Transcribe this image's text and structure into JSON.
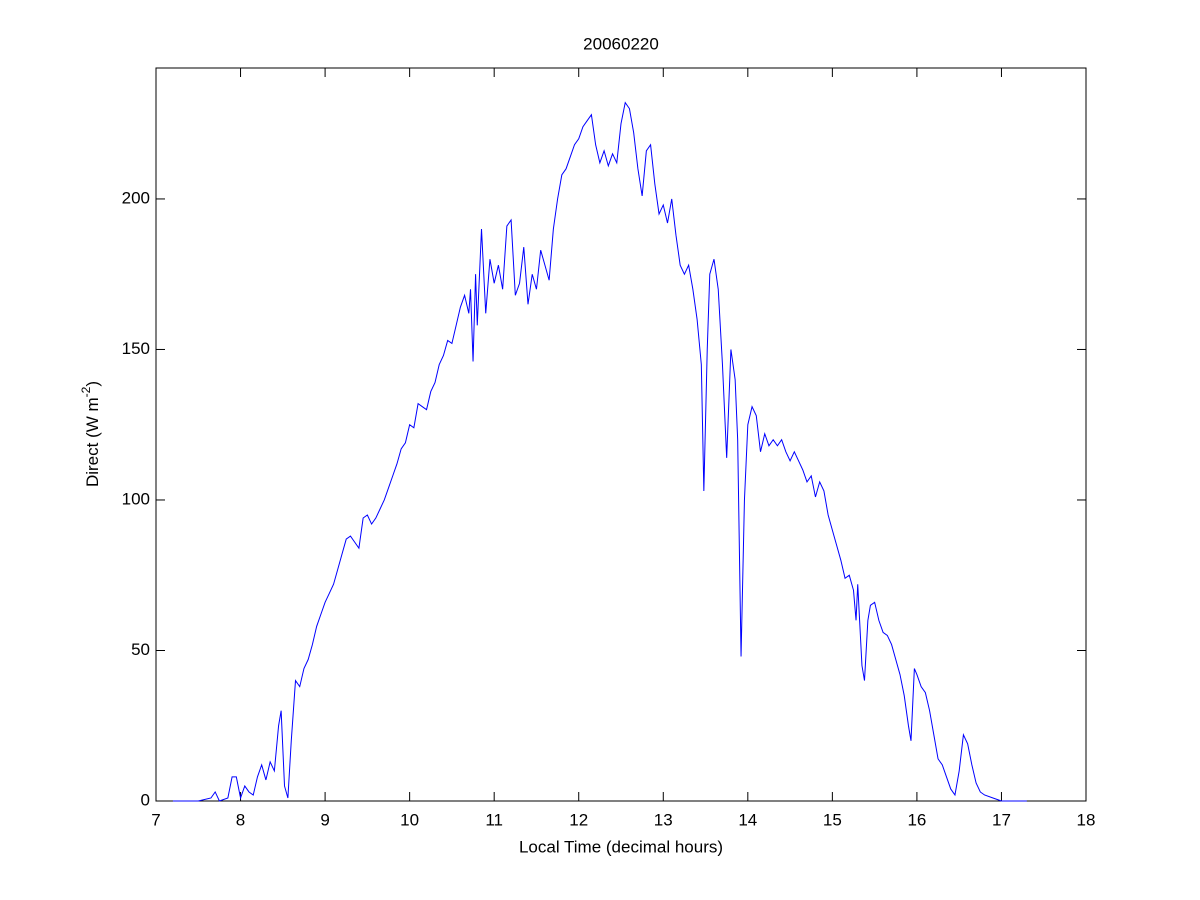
{
  "chart_data": {
    "type": "line",
    "title": "20060220",
    "xlabel": "Local Time (decimal hours)",
    "ylabel": {
      "text": "Direct (W m",
      "superscript": "-2",
      "suffix": ")"
    },
    "xlim": [
      7,
      18
    ],
    "xticks": [
      7,
      8,
      9,
      10,
      11,
      12,
      13,
      14,
      15,
      16,
      17,
      18
    ],
    "ylim": [
      0,
      243.5
    ],
    "yticks": [
      0,
      50,
      100,
      150,
      200
    ],
    "grid": false,
    "series": [
      {
        "color": "#0000ff",
        "x": [
          7.2,
          7.5,
          7.65,
          7.7,
          7.75,
          7.85,
          7.9,
          7.95,
          8.0,
          8.05,
          8.1,
          8.15,
          8.2,
          8.25,
          8.3,
          8.35,
          8.4,
          8.45,
          8.48,
          8.52,
          8.56,
          8.6,
          8.65,
          8.7,
          8.75,
          8.8,
          8.85,
          8.9,
          8.95,
          9.0,
          9.05,
          9.1,
          9.15,
          9.2,
          9.25,
          9.3,
          9.35,
          9.4,
          9.45,
          9.5,
          9.55,
          9.6,
          9.65,
          9.7,
          9.75,
          9.8,
          9.85,
          9.9,
          9.95,
          10.0,
          10.05,
          10.1,
          10.15,
          10.2,
          10.25,
          10.3,
          10.35,
          10.4,
          10.45,
          10.5,
          10.55,
          10.6,
          10.65,
          10.7,
          10.72,
          10.75,
          10.78,
          10.8,
          10.85,
          10.9,
          10.95,
          11.0,
          11.05,
          11.1,
          11.15,
          11.2,
          11.25,
          11.3,
          11.35,
          11.4,
          11.45,
          11.5,
          11.55,
          11.6,
          11.65,
          11.7,
          11.75,
          11.8,
          11.85,
          11.9,
          11.95,
          12.0,
          12.05,
          12.1,
          12.15,
          12.2,
          12.25,
          12.3,
          12.35,
          12.4,
          12.45,
          12.5,
          12.55,
          12.6,
          12.65,
          12.7,
          12.75,
          12.8,
          12.85,
          12.9,
          12.95,
          13.0,
          13.05,
          13.1,
          13.15,
          13.2,
          13.25,
          13.3,
          13.35,
          13.4,
          13.45,
          13.48,
          13.52,
          13.55,
          13.6,
          13.65,
          13.7,
          13.75,
          13.8,
          13.85,
          13.88,
          13.92,
          13.96,
          14.0,
          14.05,
          14.1,
          14.15,
          14.2,
          14.25,
          14.3,
          14.35,
          14.4,
          14.45,
          14.5,
          14.55,
          14.6,
          14.65,
          14.7,
          14.75,
          14.8,
          14.85,
          14.9,
          14.95,
          15.0,
          15.05,
          15.1,
          15.15,
          15.2,
          15.25,
          15.28,
          15.3,
          15.35,
          15.38,
          15.42,
          15.45,
          15.5,
          15.55,
          15.6,
          15.65,
          15.7,
          15.75,
          15.8,
          15.85,
          15.9,
          15.93,
          15.97,
          16.0,
          16.05,
          16.1,
          16.15,
          16.2,
          16.25,
          16.3,
          16.35,
          16.4,
          16.45,
          16.5,
          16.55,
          16.6,
          16.65,
          16.7,
          16.75,
          16.8,
          16.9,
          17.0,
          17.1,
          17.3
        ],
        "values": [
          0,
          0,
          1,
          3,
          0,
          1,
          8,
          8,
          1,
          5,
          3,
          2,
          8,
          12,
          7,
          13,
          10,
          25,
          30,
          5,
          1,
          20,
          40,
          38,
          44,
          47,
          52,
          58,
          62,
          66,
          69,
          72,
          77,
          82,
          87,
          88,
          86,
          84,
          94,
          95,
          92,
          94,
          97,
          100,
          104,
          108,
          112,
          117,
          119,
          125,
          124,
          132,
          131,
          130,
          136,
          139,
          145,
          148,
          153,
          152,
          158,
          164,
          168,
          162,
          170,
          146,
          175,
          158,
          190,
          162,
          180,
          172,
          178,
          170,
          191,
          193,
          168,
          172,
          184,
          165,
          175,
          170,
          183,
          178,
          173,
          190,
          200,
          208,
          210,
          214,
          218,
          220,
          224,
          226,
          228,
          218,
          212,
          216,
          211,
          215,
          212,
          225,
          232,
          230,
          222,
          210,
          201,
          216,
          218,
          205,
          195,
          198,
          192,
          200,
          188,
          178,
          175,
          178,
          170,
          160,
          145,
          103,
          150,
          175,
          180,
          170,
          145,
          114,
          150,
          140,
          120,
          48,
          100,
          125,
          131,
          128,
          116,
          122,
          118,
          120,
          118,
          120,
          116,
          113,
          116,
          113,
          110,
          106,
          108,
          101,
          106,
          103,
          95,
          90,
          85,
          80,
          74,
          75,
          70,
          60,
          72,
          45,
          40,
          60,
          65,
          66,
          60,
          56,
          55,
          52,
          47,
          42,
          35,
          25,
          20,
          44,
          42,
          38,
          36,
          30,
          22,
          14,
          12,
          8,
          4,
          2,
          10,
          22,
          19,
          12,
          6,
          3,
          2,
          1,
          0,
          0,
          0
        ]
      }
    ]
  }
}
